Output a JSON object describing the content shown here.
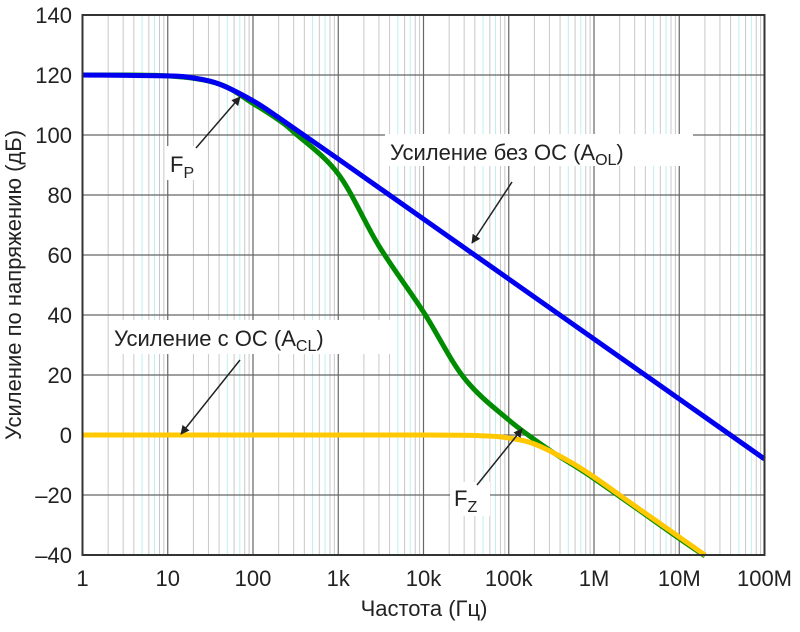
{
  "chart_data": {
    "type": "line",
    "xlabel": "Частота (Гц)",
    "ylabel": "Усиление по напряжению (дБ)",
    "x_scale": "log",
    "xlim": [
      1,
      100000000
    ],
    "ylim": [
      -40,
      140
    ],
    "grid": true,
    "x_ticks": [
      {
        "value": 1,
        "label": "1"
      },
      {
        "value": 10,
        "label": "10"
      },
      {
        "value": 100,
        "label": "100"
      },
      {
        "value": 1000,
        "label": "1k"
      },
      {
        "value": 10000,
        "label": "10k"
      },
      {
        "value": 100000,
        "label": "100k"
      },
      {
        "value": 1000000,
        "label": "1M"
      },
      {
        "value": 10000000,
        "label": "10M"
      },
      {
        "value": 100000000,
        "label": "100M"
      }
    ],
    "y_ticks": [
      {
        "value": 140,
        "label": "140"
      },
      {
        "value": 120,
        "label": "120"
      },
      {
        "value": 100,
        "label": "100"
      },
      {
        "value": 80,
        "label": "80"
      },
      {
        "value": 60,
        "label": "60"
      },
      {
        "value": 40,
        "label": "40"
      },
      {
        "value": 20,
        "label": "20"
      },
      {
        "value": 0,
        "label": "0"
      },
      {
        "value": -20,
        "label": "–20"
      },
      {
        "value": -40,
        "label": "–40"
      }
    ],
    "series": [
      {
        "color": "#0000ee",
        "x": [
          1,
          10,
          20,
          40,
          100,
          200,
          1000,
          10000,
          100000,
          1000000,
          10000000,
          100000000
        ],
        "y": [
          120,
          119.7,
          119.0,
          117.0,
          111.4,
          105.8,
          92.0,
          72.0,
          52.0,
          32.0,
          12.0,
          -8.0
        ]
      },
      {
        "color": "#008c00",
        "x": [
          1,
          10,
          40,
          100,
          200,
          300,
          1000,
          3000,
          10000,
          30000,
          100000,
          300000,
          1000000,
          10000000,
          20000000
        ],
        "y": [
          120,
          119.7,
          117,
          110.5,
          105,
          101,
          87,
          63,
          41,
          19,
          5,
          -5,
          -14.5,
          -34.5,
          -40.3
        ]
      },
      {
        "color": "#ffc800",
        "x": [
          1,
          10000,
          50000,
          100000,
          200000,
          500000,
          1000000,
          3000000,
          10000000,
          20000000
        ],
        "y": [
          0,
          0,
          -0.3,
          -1,
          -3,
          -8.6,
          -14,
          -23.6,
          -34,
          -40
        ]
      }
    ],
    "annotations": [
      {
        "id": "aol",
        "text": "Усиление без ОС (A",
        "sub": "OL",
        "tail": ")"
      },
      {
        "id": "fp",
        "text": "F",
        "sub": "P",
        "tail": ""
      },
      {
        "id": "acl",
        "text": "Усиление с ОС (A",
        "sub": "CL",
        "tail": ")"
      },
      {
        "id": "fz",
        "text": "F",
        "sub": "Z",
        "tail": ""
      }
    ]
  }
}
